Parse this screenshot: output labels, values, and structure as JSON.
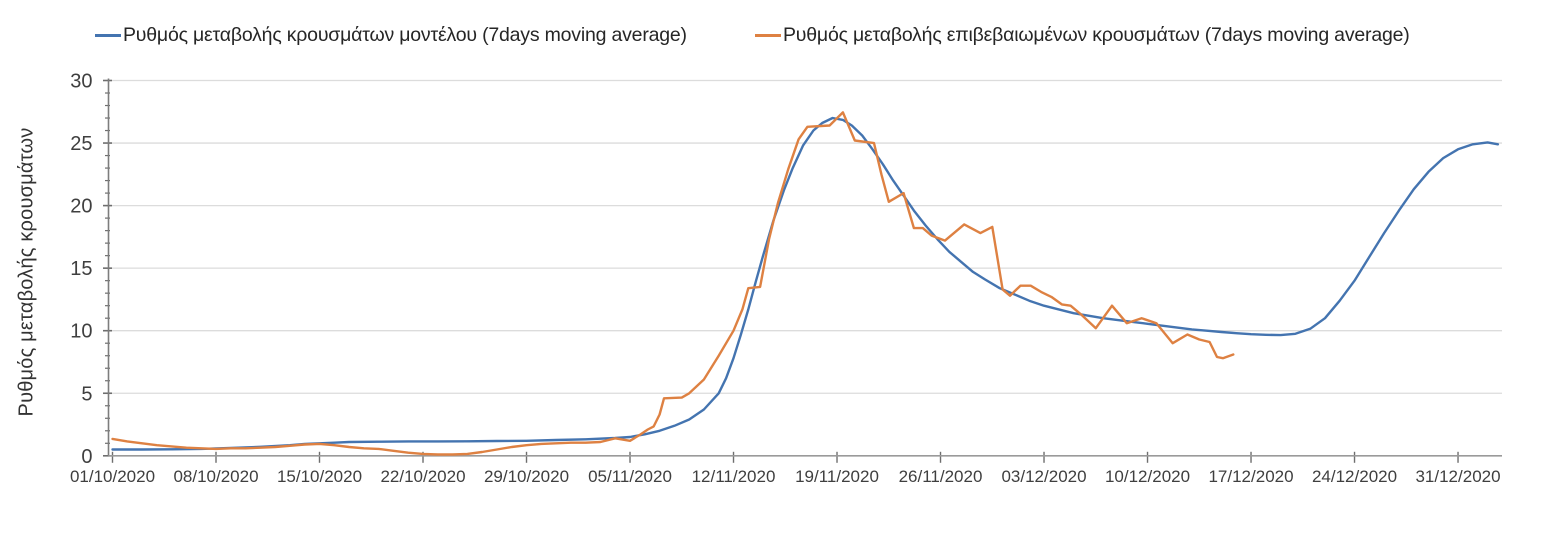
{
  "chart_data": {
    "type": "line",
    "title": "",
    "ylabel": "Ρυθμός μεταβολής κρουσμάτων",
    "xlabel": "",
    "ylim": [
      0,
      30
    ],
    "y_major_ticks": [
      0,
      5,
      10,
      15,
      20,
      25,
      30
    ],
    "y_minor_step": 1,
    "grid": "horizontal-major",
    "legend_position": "top",
    "x_unit": "days since 01/10/2020",
    "x_tick_interval_days": 7,
    "x_tick_labels": [
      "01/10/2020",
      "08/10/2020",
      "15/10/2020",
      "22/10/2020",
      "29/10/2020",
      "05/11/2020",
      "12/11/2020",
      "19/11/2020",
      "26/11/2020",
      "03/12/2020",
      "10/12/2020",
      "17/12/2020",
      "24/12/2020",
      "31/12/2020"
    ],
    "xlim_days": [
      0,
      94
    ],
    "colors": {
      "model_line": "#4474b0",
      "confirmed_line": "#de8142",
      "gridline": "#dcdcdc",
      "axis_line": "#9a9a9a",
      "tick_mark": "#6e6e6e",
      "tick_label": "#3f3f3f",
      "legend_text": "#262626"
    },
    "series": [
      {
        "name": "Ρυθμός μεταβολής κρουσμάτων μοντέλου (7days moving average)",
        "color": "#4474b0",
        "points": [
          [
            0,
            0.5
          ],
          [
            2,
            0.5
          ],
          [
            4,
            0.52
          ],
          [
            6,
            0.55
          ],
          [
            8,
            0.62
          ],
          [
            10,
            0.72
          ],
          [
            12,
            0.85
          ],
          [
            13,
            0.95
          ],
          [
            14,
            1.0
          ],
          [
            15,
            1.05
          ],
          [
            16,
            1.1
          ],
          [
            18,
            1.13
          ],
          [
            20,
            1.15
          ],
          [
            22,
            1.15
          ],
          [
            24,
            1.16
          ],
          [
            26,
            1.18
          ],
          [
            28,
            1.2
          ],
          [
            30,
            1.26
          ],
          [
            32,
            1.32
          ],
          [
            34,
            1.42
          ],
          [
            35,
            1.5
          ],
          [
            36,
            1.72
          ],
          [
            37,
            2.0
          ],
          [
            38,
            2.4
          ],
          [
            39,
            2.9
          ],
          [
            40,
            3.7
          ],
          [
            41,
            5.0
          ],
          [
            41.5,
            6.2
          ],
          [
            42,
            7.8
          ],
          [
            42.5,
            9.7
          ],
          [
            43,
            11.7
          ],
          [
            43.5,
            13.9
          ],
          [
            44,
            16.0
          ],
          [
            44.7,
            18.8
          ],
          [
            45.4,
            21.2
          ],
          [
            46,
            23.0
          ],
          [
            46.7,
            24.8
          ],
          [
            47.4,
            26.0
          ],
          [
            48,
            26.6
          ],
          [
            48.7,
            27.0
          ],
          [
            49.4,
            26.85
          ],
          [
            50,
            26.4
          ],
          [
            50.7,
            25.6
          ],
          [
            51.4,
            24.5
          ],
          [
            52.1,
            23.3
          ],
          [
            52.8,
            22.0
          ],
          [
            53.5,
            20.8
          ],
          [
            54.2,
            19.6
          ],
          [
            55,
            18.4
          ],
          [
            55.8,
            17.3
          ],
          [
            56.6,
            16.3
          ],
          [
            57.4,
            15.5
          ],
          [
            58.2,
            14.7
          ],
          [
            59,
            14.1
          ],
          [
            60,
            13.4
          ],
          [
            61,
            12.9
          ],
          [
            62,
            12.4
          ],
          [
            63,
            12.0
          ],
          [
            64,
            11.7
          ],
          [
            65,
            11.4
          ],
          [
            66,
            11.2
          ],
          [
            67,
            11.0
          ],
          [
            68,
            10.85
          ],
          [
            69,
            10.7
          ],
          [
            70,
            10.55
          ],
          [
            71,
            10.4
          ],
          [
            72,
            10.25
          ],
          [
            73,
            10.1
          ],
          [
            74,
            10.0
          ],
          [
            75,
            9.9
          ],
          [
            76,
            9.8
          ],
          [
            77,
            9.72
          ],
          [
            78,
            9.67
          ],
          [
            79,
            9.65
          ],
          [
            80,
            9.75
          ],
          [
            81,
            10.15
          ],
          [
            82,
            11.0
          ],
          [
            83,
            12.4
          ],
          [
            84,
            14.0
          ],
          [
            85,
            15.9
          ],
          [
            86,
            17.8
          ],
          [
            87,
            19.6
          ],
          [
            88,
            21.3
          ],
          [
            89,
            22.7
          ],
          [
            90,
            23.8
          ],
          [
            91,
            24.5
          ],
          [
            92,
            24.9
          ],
          [
            93,
            25.05
          ],
          [
            93.7,
            24.9
          ]
        ]
      },
      {
        "name": "Ρυθμός μεταβολής επιβεβαιωμένων κρουσμάτων (7days moving average)",
        "color": "#de8142",
        "points": [
          [
            0,
            1.35
          ],
          [
            1,
            1.15
          ],
          [
            2,
            1.0
          ],
          [
            3,
            0.85
          ],
          [
            4,
            0.75
          ],
          [
            5,
            0.65
          ],
          [
            6,
            0.6
          ],
          [
            7,
            0.55
          ],
          [
            8,
            0.6
          ],
          [
            9,
            0.6
          ],
          [
            10,
            0.65
          ],
          [
            11,
            0.7
          ],
          [
            12,
            0.8
          ],
          [
            13,
            0.9
          ],
          [
            14,
            0.95
          ],
          [
            15,
            0.85
          ],
          [
            16,
            0.7
          ],
          [
            17,
            0.6
          ],
          [
            18,
            0.55
          ],
          [
            19,
            0.4
          ],
          [
            20,
            0.25
          ],
          [
            21,
            0.15
          ],
          [
            22,
            0.1
          ],
          [
            23,
            0.1
          ],
          [
            24,
            0.15
          ],
          [
            25,
            0.3
          ],
          [
            26,
            0.5
          ],
          [
            27,
            0.7
          ],
          [
            28,
            0.85
          ],
          [
            29,
            0.95
          ],
          [
            30,
            1.0
          ],
          [
            31,
            1.05
          ],
          [
            32,
            1.05
          ],
          [
            33,
            1.1
          ],
          [
            34,
            1.4
          ],
          [
            35,
            1.2
          ],
          [
            35.7,
            1.7
          ],
          [
            36.2,
            2.1
          ],
          [
            36.6,
            2.35
          ],
          [
            37,
            3.3
          ],
          [
            37.3,
            4.6
          ],
          [
            38.5,
            4.65
          ],
          [
            39,
            5.0
          ],
          [
            40,
            6.1
          ],
          [
            41,
            8.0
          ],
          [
            42,
            10.0
          ],
          [
            42.6,
            11.7
          ],
          [
            43,
            13.4
          ],
          [
            43.8,
            13.5
          ],
          [
            44.4,
            17.3
          ],
          [
            45,
            20.2
          ],
          [
            45.7,
            22.9
          ],
          [
            46.4,
            25.3
          ],
          [
            47,
            26.3
          ],
          [
            48.5,
            26.4
          ],
          [
            49.4,
            27.45
          ],
          [
            50.2,
            25.2
          ],
          [
            51.5,
            25.0
          ],
          [
            52,
            22.5
          ],
          [
            52.5,
            20.3
          ],
          [
            53.5,
            21.0
          ],
          [
            54.2,
            18.2
          ],
          [
            54.8,
            18.2
          ],
          [
            55.4,
            17.6
          ],
          [
            56.3,
            17.2
          ],
          [
            57.6,
            18.5
          ],
          [
            58.7,
            17.8
          ],
          [
            59.5,
            18.3
          ],
          [
            60.2,
            13.3
          ],
          [
            60.7,
            12.8
          ],
          [
            61.4,
            13.6
          ],
          [
            62.1,
            13.6
          ],
          [
            62.8,
            13.1
          ],
          [
            63.5,
            12.7
          ],
          [
            64.2,
            12.1
          ],
          [
            64.8,
            12.0
          ],
          [
            65.5,
            11.3
          ],
          [
            66.5,
            10.2
          ],
          [
            67.6,
            12.0
          ],
          [
            68.6,
            10.6
          ],
          [
            69.6,
            11.0
          ],
          [
            70.6,
            10.6
          ],
          [
            71.7,
            9.0
          ],
          [
            72.7,
            9.7
          ],
          [
            73.5,
            9.3
          ],
          [
            74.2,
            9.1
          ],
          [
            74.7,
            7.9
          ],
          [
            75.1,
            7.8
          ],
          [
            75.8,
            8.1
          ]
        ]
      }
    ]
  }
}
